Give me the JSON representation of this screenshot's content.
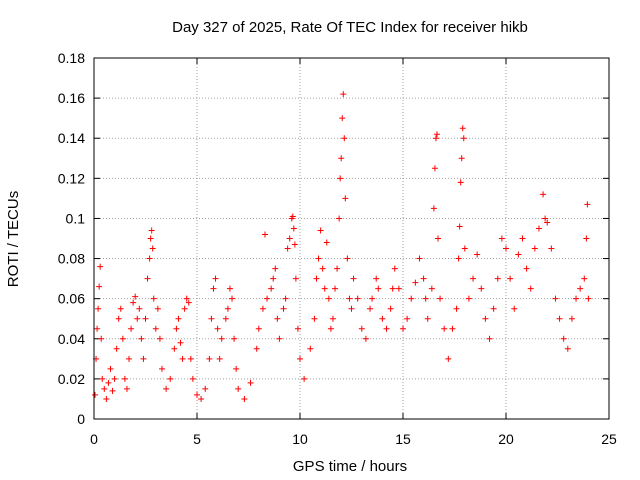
{
  "chart_data": {
    "type": "scatter",
    "title": "Day 327 of 2025, Rate Of TEC Index for receiver hikb",
    "xlabel": "GPS time / hours",
    "ylabel": "ROTI / TECUs",
    "xlim": [
      0,
      25
    ],
    "ylim": [
      0,
      0.18
    ],
    "x_ticks": [
      "0",
      "5",
      "10",
      "15",
      "20",
      "25"
    ],
    "y_ticks": [
      "0",
      "0.02",
      "0.04",
      "0.06",
      "0.08",
      "0.1",
      "0.12",
      "0.14",
      "0.16",
      "0.18"
    ],
    "x_tick_values": [
      0,
      5,
      10,
      15,
      20,
      25
    ],
    "y_tick_values": [
      0,
      0.02,
      0.04,
      0.06,
      0.08,
      0.1,
      0.12,
      0.14,
      0.16,
      0.18
    ],
    "grid": true,
    "marker": "+",
    "color": "#ff0000",
    "series": [
      {
        "points": [
          [
            0.05,
            0.012
          ],
          [
            0.1,
            0.03
          ],
          [
            0.15,
            0.045
          ],
          [
            0.2,
            0.055
          ],
          [
            0.25,
            0.066
          ],
          [
            0.3,
            0.076
          ],
          [
            0.35,
            0.04
          ],
          [
            0.4,
            0.02
          ],
          [
            0.5,
            0.015
          ],
          [
            0.6,
            0.01
          ],
          [
            0.7,
            0.018
          ],
          [
            0.8,
            0.025
          ],
          [
            0.9,
            0.014
          ],
          [
            1.0,
            0.02
          ],
          [
            1.1,
            0.035
          ],
          [
            1.2,
            0.05
          ],
          [
            1.3,
            0.055
          ],
          [
            1.4,
            0.04
          ],
          [
            1.5,
            0.02
          ],
          [
            1.6,
            0.015
          ],
          [
            1.7,
            0.03
          ],
          [
            1.8,
            0.045
          ],
          [
            1.9,
            0.058
          ],
          [
            2.0,
            0.061
          ],
          [
            2.1,
            0.05
          ],
          [
            2.2,
            0.055
          ],
          [
            2.3,
            0.04
          ],
          [
            2.4,
            0.03
          ],
          [
            2.5,
            0.05
          ],
          [
            2.6,
            0.07
          ],
          [
            2.7,
            0.08
          ],
          [
            2.75,
            0.09
          ],
          [
            2.8,
            0.094
          ],
          [
            2.85,
            0.085
          ],
          [
            2.9,
            0.06
          ],
          [
            3.0,
            0.045
          ],
          [
            3.1,
            0.055
          ],
          [
            3.2,
            0.04
          ],
          [
            3.3,
            0.025
          ],
          [
            3.5,
            0.015
          ],
          [
            3.7,
            0.02
          ],
          [
            3.9,
            0.035
          ],
          [
            4.0,
            0.045
          ],
          [
            4.1,
            0.05
          ],
          [
            4.2,
            0.038
          ],
          [
            4.3,
            0.03
          ],
          [
            4.4,
            0.055
          ],
          [
            4.5,
            0.06
          ],
          [
            4.6,
            0.058
          ],
          [
            4.7,
            0.03
          ],
          [
            4.8,
            0.02
          ],
          [
            5.0,
            0.012
          ],
          [
            5.2,
            0.01
          ],
          [
            5.4,
            0.015
          ],
          [
            5.6,
            0.03
          ],
          [
            5.7,
            0.05
          ],
          [
            5.8,
            0.065
          ],
          [
            5.9,
            0.07
          ],
          [
            6.0,
            0.045
          ],
          [
            6.1,
            0.03
          ],
          [
            6.2,
            0.04
          ],
          [
            6.4,
            0.05
          ],
          [
            6.5,
            0.055
          ],
          [
            6.6,
            0.065
          ],
          [
            6.7,
            0.06
          ],
          [
            6.8,
            0.04
          ],
          [
            6.9,
            0.025
          ],
          [
            7.0,
            0.015
          ],
          [
            7.3,
            0.01
          ],
          [
            7.6,
            0.018
          ],
          [
            7.9,
            0.035
          ],
          [
            8.0,
            0.045
          ],
          [
            8.2,
            0.055
          ],
          [
            8.3,
            0.092
          ],
          [
            8.4,
            0.06
          ],
          [
            8.6,
            0.065
          ],
          [
            8.7,
            0.07
          ],
          [
            8.8,
            0.075
          ],
          [
            8.9,
            0.05
          ],
          [
            9.0,
            0.04
          ],
          [
            9.2,
            0.055
          ],
          [
            9.3,
            0.06
          ],
          [
            9.4,
            0.085
          ],
          [
            9.5,
            0.09
          ],
          [
            9.6,
            0.1
          ],
          [
            9.65,
            0.101
          ],
          [
            9.7,
            0.095
          ],
          [
            9.75,
            0.087
          ],
          [
            9.8,
            0.07
          ],
          [
            9.9,
            0.045
          ],
          [
            10.0,
            0.03
          ],
          [
            10.2,
            0.02
          ],
          [
            10.5,
            0.035
          ],
          [
            10.7,
            0.05
          ],
          [
            10.8,
            0.07
          ],
          [
            10.9,
            0.08
          ],
          [
            11.0,
            0.094
          ],
          [
            11.1,
            0.075
          ],
          [
            11.2,
            0.065
          ],
          [
            11.3,
            0.088
          ],
          [
            11.4,
            0.06
          ],
          [
            11.5,
            0.045
          ],
          [
            11.6,
            0.05
          ],
          [
            11.7,
            0.065
          ],
          [
            11.8,
            0.075
          ],
          [
            11.9,
            0.1
          ],
          [
            11.95,
            0.12
          ],
          [
            12.0,
            0.13
          ],
          [
            12.05,
            0.15
          ],
          [
            12.1,
            0.162
          ],
          [
            12.15,
            0.14
          ],
          [
            12.2,
            0.11
          ],
          [
            12.3,
            0.08
          ],
          [
            12.4,
            0.06
          ],
          [
            12.5,
            0.055
          ],
          [
            12.6,
            0.07
          ],
          [
            12.8,
            0.06
          ],
          [
            13.0,
            0.045
          ],
          [
            13.2,
            0.04
          ],
          [
            13.4,
            0.055
          ],
          [
            13.5,
            0.06
          ],
          [
            13.7,
            0.07
          ],
          [
            13.8,
            0.065
          ],
          [
            14.0,
            0.05
          ],
          [
            14.2,
            0.045
          ],
          [
            14.4,
            0.055
          ],
          [
            14.5,
            0.065
          ],
          [
            14.6,
            0.075
          ],
          [
            14.8,
            0.065
          ],
          [
            15.0,
            0.045
          ],
          [
            15.2,
            0.05
          ],
          [
            15.4,
            0.06
          ],
          [
            15.6,
            0.068
          ],
          [
            15.8,
            0.08
          ],
          [
            16.0,
            0.07
          ],
          [
            16.1,
            0.06
          ],
          [
            16.2,
            0.05
          ],
          [
            16.4,
            0.065
          ],
          [
            16.5,
            0.105
          ],
          [
            16.55,
            0.125
          ],
          [
            16.6,
            0.14
          ],
          [
            16.65,
            0.142
          ],
          [
            16.7,
            0.09
          ],
          [
            16.8,
            0.06
          ],
          [
            17.0,
            0.045
          ],
          [
            17.2,
            0.03
          ],
          [
            17.4,
            0.045
          ],
          [
            17.6,
            0.055
          ],
          [
            17.7,
            0.08
          ],
          [
            17.75,
            0.096
          ],
          [
            17.8,
            0.118
          ],
          [
            17.85,
            0.13
          ],
          [
            17.9,
            0.145
          ],
          [
            17.95,
            0.14
          ],
          [
            18.0,
            0.085
          ],
          [
            18.2,
            0.06
          ],
          [
            18.4,
            0.07
          ],
          [
            18.6,
            0.082
          ],
          [
            18.8,
            0.065
          ],
          [
            19.0,
            0.05
          ],
          [
            19.2,
            0.04
          ],
          [
            19.4,
            0.055
          ],
          [
            19.6,
            0.07
          ],
          [
            19.8,
            0.09
          ],
          [
            20.0,
            0.085
          ],
          [
            20.2,
            0.07
          ],
          [
            20.4,
            0.055
          ],
          [
            20.6,
            0.082
          ],
          [
            20.8,
            0.09
          ],
          [
            21.0,
            0.075
          ],
          [
            21.2,
            0.065
          ],
          [
            21.4,
            0.085
          ],
          [
            21.6,
            0.095
          ],
          [
            21.8,
            0.112
          ],
          [
            21.9,
            0.1
          ],
          [
            22.0,
            0.098
          ],
          [
            22.2,
            0.085
          ],
          [
            22.4,
            0.06
          ],
          [
            22.6,
            0.05
          ],
          [
            22.8,
            0.04
          ],
          [
            23.0,
            0.035
          ],
          [
            23.2,
            0.05
          ],
          [
            23.4,
            0.06
          ],
          [
            23.6,
            0.065
          ],
          [
            23.8,
            0.07
          ],
          [
            23.9,
            0.09
          ],
          [
            23.95,
            0.107
          ],
          [
            24.0,
            0.06
          ]
        ]
      }
    ]
  }
}
